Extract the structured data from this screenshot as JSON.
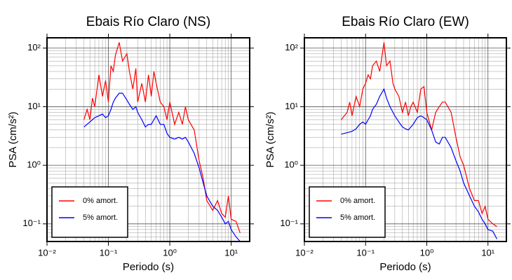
{
  "chart_data": [
    {
      "type": "line",
      "title": "Ebais Río Claro (NS)",
      "xlabel": "Periodo (s)",
      "ylabel": "PSA (cm/s²)",
      "xscale": "log",
      "yscale": "log",
      "grid": true,
      "legend": "lower left",
      "xlim": [
        0.01,
        20
      ],
      "ylim": [
        0.05,
        150
      ],
      "xticks": [
        {
          "value": 0.01,
          "label": "10⁻²"
        },
        {
          "value": 0.1,
          "label": "10⁻¹"
        },
        {
          "value": 1,
          "label": "10⁰"
        },
        {
          "value": 10,
          "label": "10¹"
        }
      ],
      "yticks": [
        {
          "value": 0.1,
          "label": "10⁻¹"
        },
        {
          "value": 1,
          "label": "10⁰"
        },
        {
          "value": 10,
          "label": "10¹"
        },
        {
          "value": 100,
          "label": "10²"
        }
      ],
      "xminorticks": [
        0.02,
        0.03,
        0.04,
        0.05,
        0.06,
        0.07,
        0.08,
        0.09,
        0.2,
        0.3,
        0.4,
        0.5,
        0.6,
        0.7,
        0.8,
        0.9,
        2,
        3,
        4,
        5,
        6,
        7,
        8,
        9,
        20
      ],
      "yminorticks": [
        0.06,
        0.07,
        0.08,
        0.09,
        0.2,
        0.3,
        0.4,
        0.5,
        0.6,
        0.7,
        0.8,
        0.9,
        2,
        3,
        4,
        5,
        6,
        7,
        8,
        9,
        20,
        30,
        40,
        50,
        60,
        70,
        80,
        90
      ],
      "x": [
        0.04,
        0.045,
        0.05,
        0.055,
        0.06,
        0.07,
        0.08,
        0.09,
        0.1,
        0.11,
        0.12,
        0.13,
        0.15,
        0.17,
        0.2,
        0.22,
        0.25,
        0.28,
        0.3,
        0.35,
        0.4,
        0.45,
        0.5,
        0.55,
        0.6,
        0.7,
        0.8,
        0.9,
        1.0,
        1.2,
        1.4,
        1.6,
        1.8,
        2.0,
        2.5,
        3,
        3.5,
        4,
        5,
        6,
        7,
        8,
        9,
        10,
        12,
        14
      ],
      "series": [
        {
          "name": "0% amort.",
          "color": "#ff0000",
          "values": [
            6,
            9,
            6,
            14,
            10,
            35,
            15,
            28,
            12,
            50,
            40,
            75,
            125,
            60,
            80,
            40,
            20,
            45,
            12,
            25,
            12,
            35,
            15,
            40,
            25,
            12,
            10,
            6,
            12,
            5,
            8,
            5,
            10,
            6,
            4,
            1.2,
            0.6,
            0.25,
            0.17,
            0.25,
            0.15,
            0.13,
            0.3,
            0.12,
            0.11,
            0.07
          ]
        },
        {
          "name": "5% amort.",
          "color": "#0000ff",
          "values": [
            4.5,
            5,
            5.5,
            6,
            6.5,
            7,
            7.5,
            6.5,
            7,
            9,
            12,
            14,
            17,
            17,
            13,
            11,
            9,
            10,
            8,
            6,
            4.5,
            5,
            5,
            6,
            7,
            5,
            5,
            3.5,
            3,
            2.8,
            3,
            2.8,
            3,
            2.5,
            1.6,
            0.9,
            0.5,
            0.3,
            0.2,
            0.17,
            0.13,
            0.1,
            0.11,
            0.08,
            0.06,
            0.05
          ]
        }
      ]
    },
    {
      "type": "line",
      "title": "Ebais Río Claro (EW)",
      "xlabel": "Periodo (s)",
      "ylabel": "PSA (cm/s²)",
      "xscale": "log",
      "yscale": "log",
      "grid": true,
      "legend": "lower left",
      "xlim": [
        0.01,
        20
      ],
      "ylim": [
        0.05,
        150
      ],
      "xticks": [
        {
          "value": 0.01,
          "label": "10⁻²"
        },
        {
          "value": 0.1,
          "label": "10⁻¹"
        },
        {
          "value": 1,
          "label": "10⁰"
        },
        {
          "value": 10,
          "label": "10¹"
        }
      ],
      "yticks": [
        {
          "value": 0.1,
          "label": "10⁻¹"
        },
        {
          "value": 1,
          "label": "10⁰"
        },
        {
          "value": 10,
          "label": "10¹"
        },
        {
          "value": 100,
          "label": "10²"
        }
      ],
      "xminorticks": [
        0.02,
        0.03,
        0.04,
        0.05,
        0.06,
        0.07,
        0.08,
        0.09,
        0.2,
        0.3,
        0.4,
        0.5,
        0.6,
        0.7,
        0.8,
        0.9,
        2,
        3,
        4,
        5,
        6,
        7,
        8,
        9,
        20
      ],
      "yminorticks": [
        0.06,
        0.07,
        0.08,
        0.09,
        0.2,
        0.3,
        0.4,
        0.5,
        0.6,
        0.7,
        0.8,
        0.9,
        2,
        3,
        4,
        5,
        6,
        7,
        8,
        9,
        20,
        30,
        40,
        50,
        60,
        70,
        80,
        90
      ],
      "x": [
        0.04,
        0.045,
        0.05,
        0.055,
        0.06,
        0.07,
        0.08,
        0.09,
        0.1,
        0.11,
        0.12,
        0.13,
        0.15,
        0.17,
        0.2,
        0.22,
        0.25,
        0.28,
        0.3,
        0.35,
        0.4,
        0.45,
        0.5,
        0.55,
        0.6,
        0.7,
        0.8,
        0.9,
        1.0,
        1.2,
        1.4,
        1.6,
        1.8,
        2.0,
        2.5,
        3,
        3.5,
        4,
        5,
        6,
        7,
        8,
        9,
        10,
        12,
        14
      ],
      "series": [
        {
          "name": "0% amort.",
          "color": "#ff0000",
          "values": [
            6,
            7,
            8,
            12,
            7,
            15,
            10,
            20,
            25,
            35,
            30,
            50,
            60,
            40,
            125,
            50,
            60,
            25,
            20,
            15,
            8,
            12,
            7,
            10,
            12,
            8,
            20,
            22,
            8,
            4,
            8,
            10,
            12,
            12,
            8,
            3,
            1.4,
            1,
            0.4,
            0.25,
            0.25,
            0.15,
            0.2,
            0.12,
            0.1,
            0.09
          ]
        },
        {
          "name": "5% amort.",
          "color": "#0000ff",
          "values": [
            3.4,
            3.5,
            3.6,
            3.7,
            3.8,
            4.2,
            5,
            5.5,
            5,
            6,
            7,
            9,
            11,
            15,
            20,
            14,
            10,
            8,
            7,
            5.5,
            4.5,
            4.2,
            4,
            4.5,
            5,
            6.5,
            7,
            6.5,
            6,
            4,
            2.5,
            2.3,
            3,
            3,
            2,
            1.2,
            0.8,
            0.5,
            0.3,
            0.2,
            0.16,
            0.12,
            0.1,
            0.08,
            0.075,
            0.055
          ]
        }
      ]
    }
  ]
}
